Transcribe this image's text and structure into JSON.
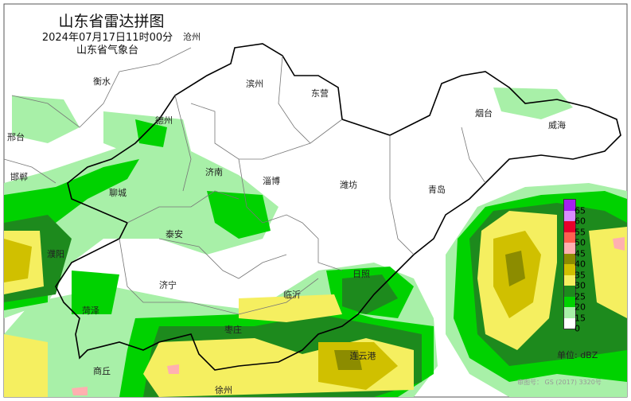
{
  "header": {
    "title": "山东省雷达拼图",
    "datetime": "2024年07月17日11时00分",
    "agency": "山东省气象台"
  },
  "cities": [
    {
      "name": "沧州"
    },
    {
      "name": "衡水"
    },
    {
      "name": "滨州"
    },
    {
      "name": "东营"
    },
    {
      "name": "烟台"
    },
    {
      "name": "威海"
    },
    {
      "name": "德州"
    },
    {
      "name": "邢台"
    },
    {
      "name": "邯郸"
    },
    {
      "name": "济南"
    },
    {
      "name": "淄博"
    },
    {
      "name": "潍坊"
    },
    {
      "name": "青岛"
    },
    {
      "name": "聊城"
    },
    {
      "name": "泰安"
    },
    {
      "name": "濮阳"
    },
    {
      "name": "日照"
    },
    {
      "name": "济宁"
    },
    {
      "name": "临沂"
    },
    {
      "name": "菏泽"
    },
    {
      "name": "枣庄"
    },
    {
      "name": "连云港"
    },
    {
      "name": "商丘"
    },
    {
      "name": "徐州"
    }
  ],
  "legend": {
    "unit": "单位: dBZ",
    "labels": [
      "65",
      "60",
      "55",
      "50",
      "45",
      "40",
      "35",
      "30",
      "25",
      "20",
      "15",
      "0"
    ],
    "colors": [
      "#a41ff0",
      "#d98cff",
      "#e8002a",
      "#ff6050",
      "#ffb0b0",
      "#8c8c00",
      "#d0c000",
      "#f5ef60",
      "#1d8a1d",
      "#00d200",
      "#a8f0a8",
      "#ffffff"
    ]
  },
  "footer": {
    "map_review_number": "审图号： GS (2017) 3320号"
  }
}
